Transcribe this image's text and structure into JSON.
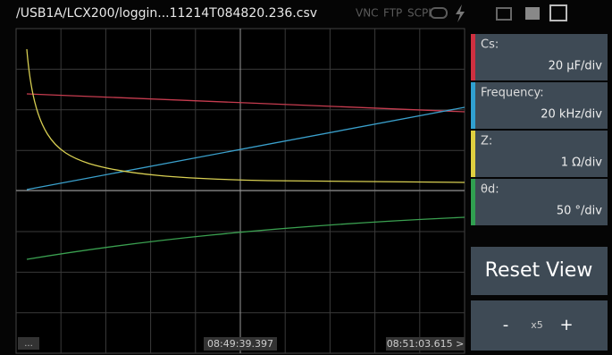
{
  "header": {
    "path": "/USB1A/LCX200/loggin...11214T084820.236.csv",
    "status": [
      "VNC",
      "FTP",
      "SCPI"
    ]
  },
  "panels": [
    {
      "label": "Cs:",
      "scale": "20 µF/div"
    },
    {
      "label": "Frequency:",
      "scale": "20 kHz/div"
    },
    {
      "label": "Z:",
      "scale": "1 Ω/div"
    },
    {
      "label": "θd:",
      "scale": "50 °/div"
    }
  ],
  "reset": "Reset View",
  "zoom": {
    "minus": "-",
    "factor": "x5",
    "plus": "+"
  },
  "footer": {
    "menu": "...",
    "cursor_time": "08:49:39.397",
    "end_time": "08:51:03.615 >"
  }
}
